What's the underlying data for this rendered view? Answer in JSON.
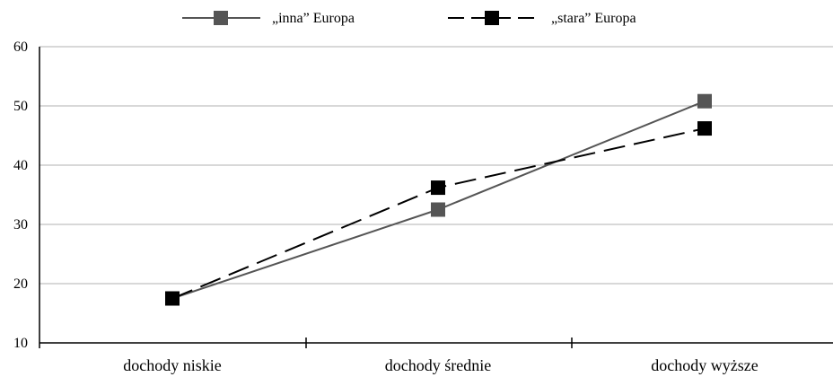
{
  "chart_data": {
    "type": "line",
    "categories": [
      "dochody niskie",
      "dochody średnie",
      "dochody wyższe"
    ],
    "series": [
      {
        "name": "„inna” Europa",
        "values": [
          17.5,
          32.5,
          50.8
        ],
        "color": "#555555",
        "dash": "solid",
        "marker": "square"
      },
      {
        "name": "„stara” Europa",
        "values": [
          17.5,
          36.2,
          46.2
        ],
        "color": "#000000",
        "dash": "dashed",
        "marker": "square"
      }
    ],
    "ylim": [
      10,
      60
    ],
    "yticks": [
      10,
      20,
      30,
      40,
      50,
      60
    ],
    "grid": true,
    "legend_position": "top"
  }
}
